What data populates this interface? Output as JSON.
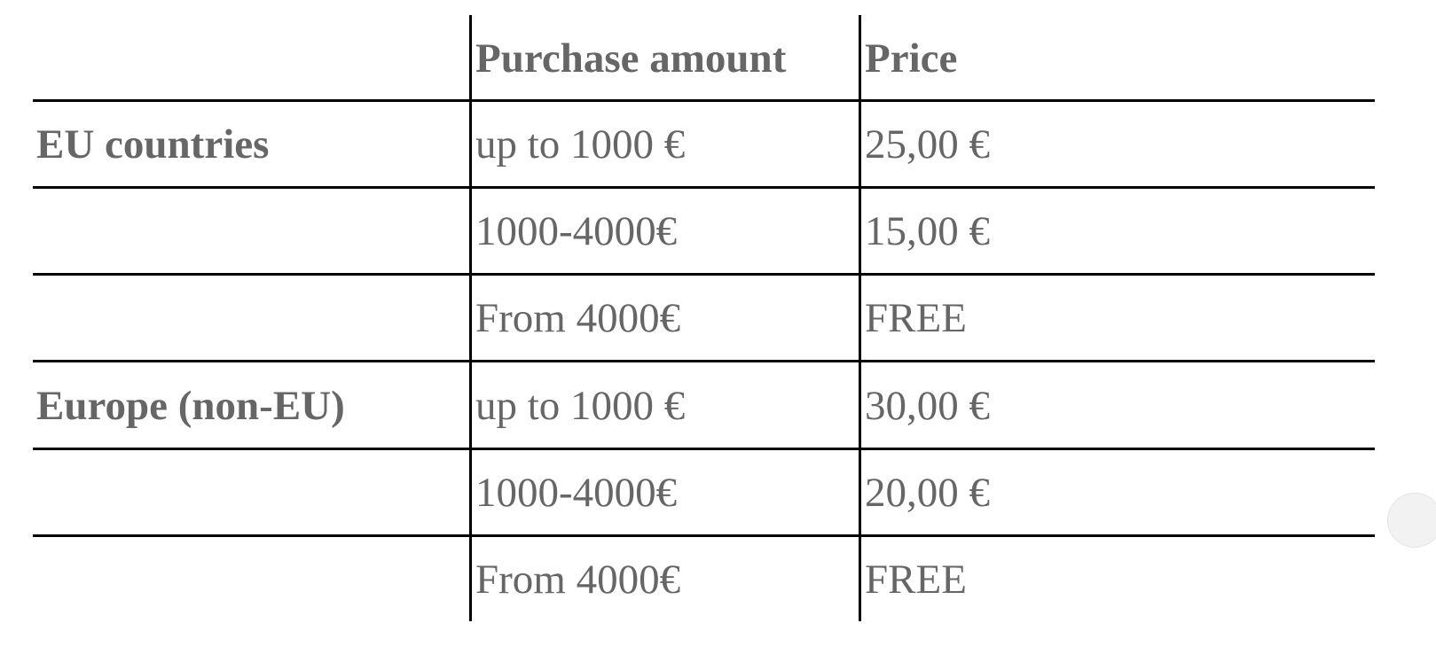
{
  "table": {
    "headers": [
      "",
      "Purchase amount",
      "Price"
    ],
    "rows": [
      {
        "region": "EU countries",
        "amount": "up to 1000 €",
        "price": "25,00 €"
      },
      {
        "region": "",
        "amount": "1000-4000€",
        "price": "15,00 €"
      },
      {
        "region": "",
        "amount": "From 4000€",
        "price": "FREE"
      },
      {
        "region": "Europe (non-EU)",
        "amount": "up to 1000 €",
        "price": "30,00 €"
      },
      {
        "region": "",
        "amount": "1000-4000€",
        "price": "20,00 €"
      },
      {
        "region": "",
        "amount": "From 4000€",
        "price": "FREE"
      }
    ]
  }
}
